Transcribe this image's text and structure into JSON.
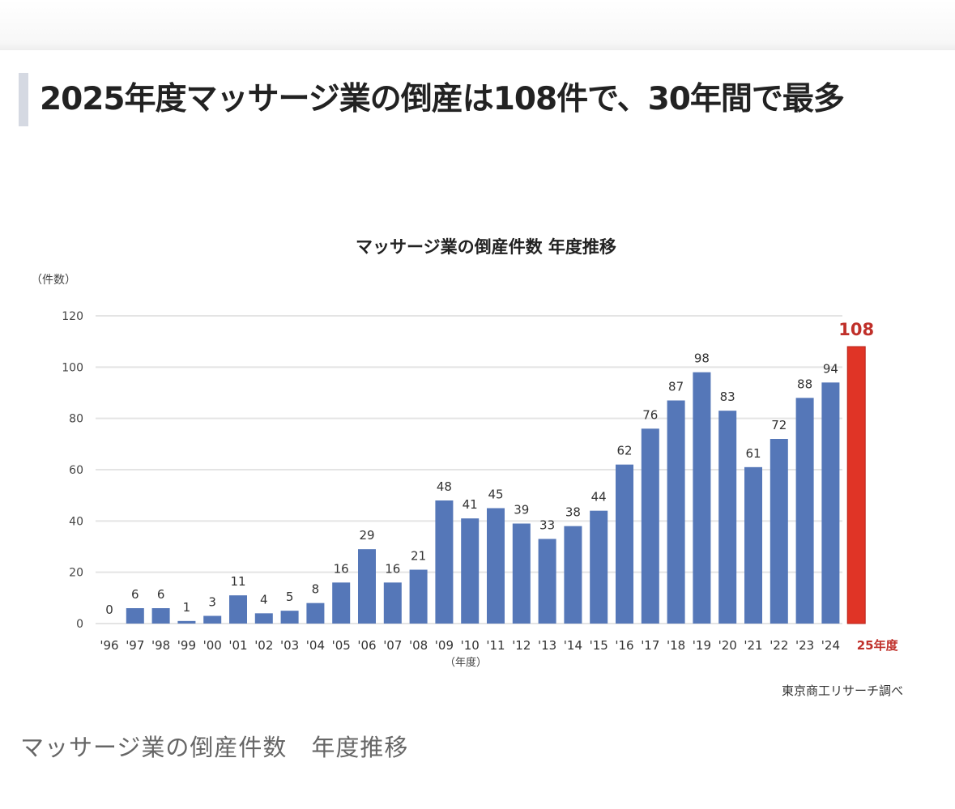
{
  "headline": "2025年度マッサージ業の倒産は108件で、30年間で最多",
  "caption": "マッサージ業の倒産件数　年度推移",
  "chart_data": {
    "type": "bar",
    "title": "マッサージ業の倒産件数  年度推移",
    "ylabel": "（件数）",
    "xlabel": "（年度）",
    "source": "東京商工リサーチ調べ",
    "ylim": [
      0,
      120
    ],
    "yticks": [
      0,
      20,
      40,
      60,
      80,
      100,
      120
    ],
    "grid": true,
    "categories": [
      "'96",
      "'97",
      "'98",
      "'99",
      "'00",
      "'01",
      "'02",
      "'03",
      "'04",
      "'05",
      "'06",
      "'07",
      "'08",
      "'09",
      "'10",
      "'11",
      "'12",
      "'13",
      "'14",
      "'15",
      "'16",
      "'17",
      "'18",
      "'19",
      "'20",
      "'21",
      "'22",
      "'23",
      "'24",
      "25年度"
    ],
    "values": [
      0,
      6,
      6,
      1,
      3,
      11,
      4,
      5,
      8,
      16,
      29,
      16,
      21,
      48,
      41,
      45,
      39,
      33,
      38,
      44,
      62,
      76,
      87,
      98,
      83,
      61,
      72,
      88,
      94,
      108
    ],
    "highlight_index": 29,
    "colors": {
      "bar": "#5577b8",
      "highlight": "#e03426",
      "highlight_text": "#c0302a",
      "grid": "#e4e4e4"
    }
  }
}
